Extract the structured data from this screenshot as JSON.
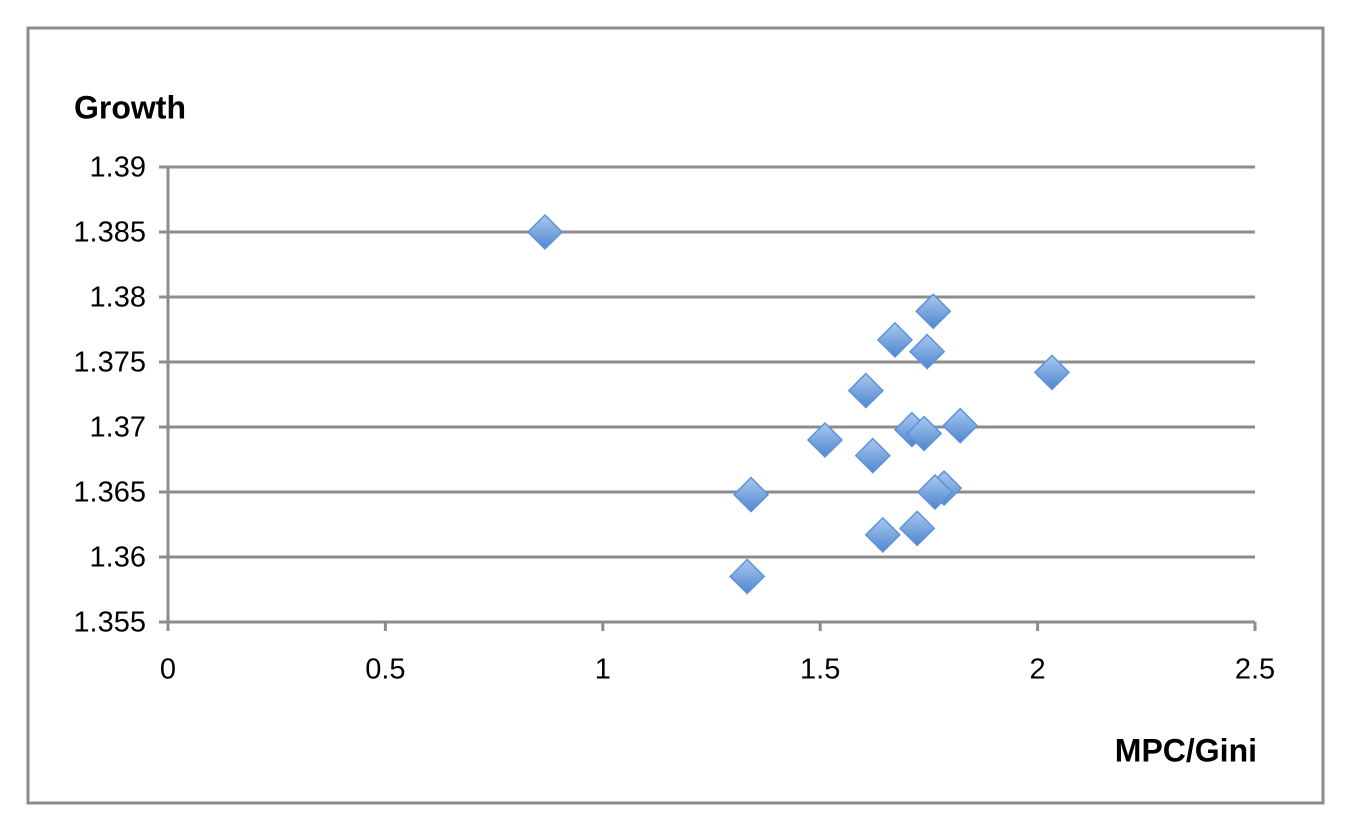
{
  "chart_data": {
    "type": "scatter",
    "x_label": "MPC/Gini",
    "y_label": "Growth",
    "x": [
      0.867,
      1.76,
      1.672,
      1.746,
      2.033,
      1.605,
      1.711,
      1.739,
      1.822,
      1.511,
      1.621,
      1.341,
      1.785,
      1.764,
      1.644,
      1.723,
      1.332
    ],
    "values": [
      1.385,
      1.3789,
      1.3767,
      1.3758,
      1.3742,
      1.3728,
      1.3698,
      1.3695,
      1.3701,
      1.369,
      1.3678,
      1.3648,
      1.3653,
      1.365,
      1.3617,
      1.3622,
      1.3585
    ],
    "color": "#5b93d8",
    "xlim": [
      0,
      2.5
    ],
    "ylim": [
      1.355,
      1.39
    ],
    "xticks": [
      0,
      0.5,
      1,
      1.5,
      2,
      2.5
    ],
    "yticks": [
      1.355,
      1.36,
      1.365,
      1.37,
      1.375,
      1.38,
      1.385,
      1.39
    ],
    "grid": true
  }
}
